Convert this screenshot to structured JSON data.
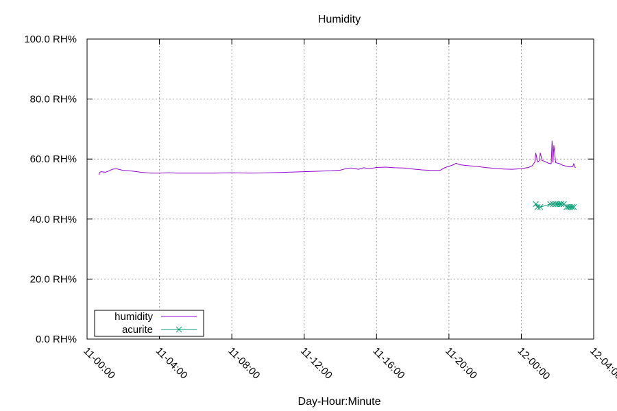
{
  "chart_data": {
    "type": "line",
    "title": "Humidity",
    "xlabel": "Day-Hour:Minute",
    "ylabel": "",
    "ylim": [
      0,
      100
    ],
    "y_ticks": [
      {
        "value": 0,
        "label": "0.0 RH%"
      },
      {
        "value": 20,
        "label": "20.0 RH%"
      },
      {
        "value": 40,
        "label": "40.0 RH%"
      },
      {
        "value": 60,
        "label": "60.0 RH%"
      },
      {
        "value": 80,
        "label": "80.0 RH%"
      },
      {
        "value": 100,
        "label": "100.0 RH%"
      }
    ],
    "x_range_hours": [
      0,
      28
    ],
    "x_ticks": [
      {
        "value": 0,
        "label": "11-00:00"
      },
      {
        "value": 4,
        "label": "11-04:00"
      },
      {
        "value": 8,
        "label": "11-08:00"
      },
      {
        "value": 12,
        "label": "11-12:00"
      },
      {
        "value": 16,
        "label": "11-16:00"
      },
      {
        "value": 20,
        "label": "11-20:00"
      },
      {
        "value": 24,
        "label": "12-00:00"
      },
      {
        "value": 28,
        "label": "12-04:00"
      }
    ],
    "grid": true,
    "legend_position": "bottom-left",
    "series": [
      {
        "name": "humidity",
        "color": "#9400d3",
        "marker": "none",
        "points": [
          [
            0.65,
            54.8
          ],
          [
            0.7,
            55.6
          ],
          [
            0.8,
            55.8
          ],
          [
            1.0,
            55.6
          ],
          [
            1.2,
            56.0
          ],
          [
            1.4,
            56.6
          ],
          [
            1.6,
            56.8
          ],
          [
            1.8,
            56.5
          ],
          [
            2.0,
            56.2
          ],
          [
            2.5,
            56.0
          ],
          [
            3.0,
            55.6
          ],
          [
            3.5,
            55.3
          ],
          [
            4.0,
            55.3
          ],
          [
            4.5,
            55.4
          ],
          [
            5.0,
            55.3
          ],
          [
            6.0,
            55.3
          ],
          [
            7.0,
            55.3
          ],
          [
            8.0,
            55.4
          ],
          [
            9.0,
            55.3
          ],
          [
            10.0,
            55.4
          ],
          [
            11.0,
            55.6
          ],
          [
            12.0,
            55.8
          ],
          [
            13.0,
            56.0
          ],
          [
            13.5,
            56.1
          ],
          [
            14.0,
            56.3
          ],
          [
            14.3,
            56.8
          ],
          [
            14.6,
            57.0
          ],
          [
            15.0,
            56.6
          ],
          [
            15.3,
            57.1
          ],
          [
            15.6,
            56.8
          ],
          [
            16.0,
            57.2
          ],
          [
            16.5,
            57.3
          ],
          [
            17.0,
            57.1
          ],
          [
            17.5,
            57.0
          ],
          [
            18.0,
            56.7
          ],
          [
            18.5,
            56.4
          ],
          [
            19.0,
            56.2
          ],
          [
            19.5,
            56.2
          ],
          [
            19.8,
            57.2
          ],
          [
            20.0,
            57.6
          ],
          [
            20.2,
            58.0
          ],
          [
            20.4,
            58.6
          ],
          [
            20.6,
            58.1
          ],
          [
            21.0,
            57.8
          ],
          [
            21.5,
            57.6
          ],
          [
            22.0,
            57.2
          ],
          [
            22.5,
            56.9
          ],
          [
            23.0,
            56.7
          ],
          [
            23.5,
            56.6
          ],
          [
            24.0,
            56.8
          ],
          [
            24.4,
            57.2
          ],
          [
            24.6,
            57.8
          ],
          [
            24.75,
            59.0
          ],
          [
            24.8,
            62.0
          ],
          [
            24.9,
            59.0
          ],
          [
            25.0,
            59.5
          ],
          [
            25.05,
            62.0
          ],
          [
            25.15,
            59.5
          ],
          [
            25.3,
            59.2
          ],
          [
            25.5,
            58.6
          ],
          [
            25.65,
            58.4
          ],
          [
            25.7,
            66.0
          ],
          [
            25.75,
            59.0
          ],
          [
            25.8,
            64.5
          ],
          [
            25.9,
            58.8
          ],
          [
            26.1,
            58.5
          ],
          [
            26.3,
            57.9
          ],
          [
            26.5,
            57.6
          ],
          [
            26.7,
            57.4
          ],
          [
            26.85,
            57.5
          ],
          [
            26.9,
            58.5
          ],
          [
            26.95,
            57.3
          ],
          [
            27.0,
            57.2
          ]
        ]
      },
      {
        "name": "acurite",
        "color": "#009e73",
        "marker": "x",
        "points": [
          [
            24.8,
            45.0
          ],
          [
            24.9,
            44.0
          ],
          [
            25.05,
            44.0
          ],
          [
            25.6,
            45.0
          ],
          [
            25.75,
            45.0
          ],
          [
            25.9,
            45.0
          ],
          [
            26.0,
            45.0
          ],
          [
            26.1,
            45.0
          ],
          [
            26.2,
            45.0
          ],
          [
            26.35,
            45.0
          ],
          [
            26.5,
            44.0
          ],
          [
            26.6,
            44.0
          ],
          [
            26.7,
            44.0
          ],
          [
            26.8,
            44.0
          ],
          [
            26.9,
            44.0
          ]
        ]
      }
    ]
  }
}
